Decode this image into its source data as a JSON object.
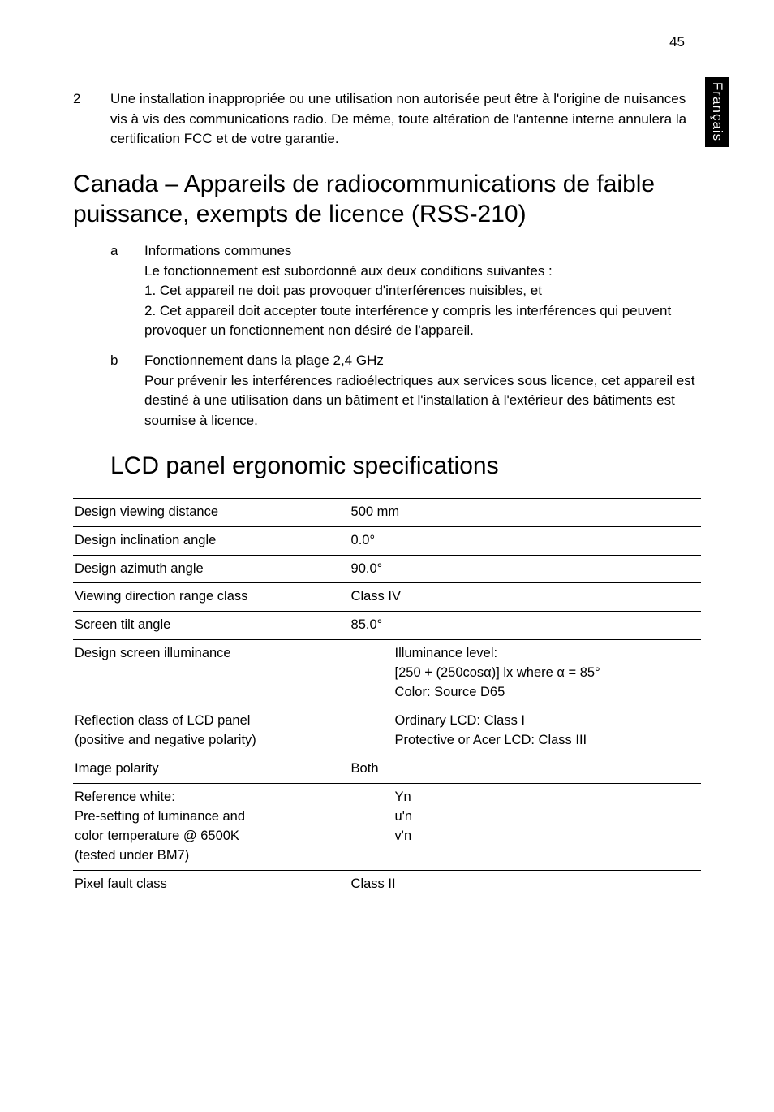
{
  "page_number": "45",
  "side_tab": "Français",
  "item2": {
    "num": "2",
    "text": "Une installation inappropriée ou une utilisation non autorisée peut être à l'origine de nuisances vis à vis des communications radio. De même, toute altération de l'antenne interne annulera la certification FCC et de votre garantie."
  },
  "heading_canada": "Canada – Appareils de radiocommunications de faible puissance, exempts de licence (RSS-210)",
  "alpha": {
    "a": {
      "letter": "a",
      "title": "Informations communes",
      "l1": "Le fonctionnement est subordonné aux deux conditions suivantes :",
      "l2": "1. Cet appareil ne doit pas provoquer d'interférences nuisibles, et",
      "l3": "2. Cet appareil doit accepter toute interférence y compris les interférences qui peuvent provoquer un fonctionnement non désiré de l'appareil."
    },
    "b": {
      "letter": "b",
      "title": "Fonctionnement dans la plage 2,4 GHz",
      "text": "Pour prévenir les interférences radioélectriques aux services sous licence, cet appareil est destiné à une utilisation dans un bâtiment et l'installation à l'extérieur des bâtiments est soumise à licence."
    }
  },
  "heading_lcd": "LCD panel ergonomic specifications",
  "table": {
    "r1": {
      "label": "Design viewing distance",
      "value": "500 mm"
    },
    "r2": {
      "label": "Design inclination angle",
      "value": "0.0°"
    },
    "r3": {
      "label": "Design azimuth angle",
      "value": "90.0°"
    },
    "r4": {
      "label": "Viewing direction range class",
      "value": "Class IV"
    },
    "r5": {
      "label": "Screen tilt angle",
      "value": "85.0°"
    },
    "r6": {
      "label": "Design screen illuminance",
      "v1": "Illuminance level:",
      "v2": "[250 + (250cosα)] lx where α = 85°",
      "v3": "Color: Source D65"
    },
    "r7": {
      "label1": "Reflection class of LCD panel",
      "label2": "(positive and negative polarity)",
      "v1": "Ordinary LCD: Class I",
      "v2": "Protective or Acer LCD: Class III"
    },
    "r8": {
      "label": "Image polarity",
      "value": "Both"
    },
    "r9": {
      "l1": "Reference white:",
      "l2": "Pre-setting of luminance and",
      "l3": "color temperature @ 6500K",
      "l4": "(tested under BM7)",
      "v1": "Yn",
      "v2": "u'n",
      "v3": "v'n"
    },
    "r10": {
      "label": "Pixel fault class",
      "value": "Class II"
    }
  }
}
